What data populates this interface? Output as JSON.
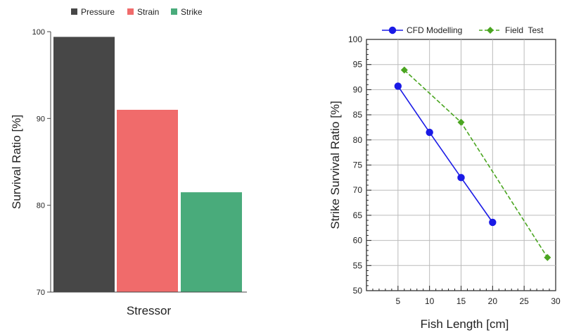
{
  "chart_data": [
    {
      "type": "bar",
      "title": "",
      "xlabel": "Stressor",
      "ylabel": "Survival Ratio [%]",
      "ylim": [
        70,
        100
      ],
      "yticks": [
        70,
        80,
        90,
        100
      ],
      "grid": false,
      "legend_position": "top",
      "series": [
        {
          "name": "Pressure",
          "value": 99.4,
          "color": "#474747"
        },
        {
          "name": "Strain",
          "value": 91.0,
          "color": "#f06b6b"
        },
        {
          "name": "Strike",
          "value": 81.5,
          "color": "#49ab7b"
        }
      ]
    },
    {
      "type": "line",
      "title": "",
      "xlabel": "Fish Length [cm]",
      "ylabel": "Strike Survival Ratio [%]",
      "xlim": [
        0,
        30
      ],
      "ylim": [
        50,
        100
      ],
      "xticks": [
        5,
        10,
        15,
        20,
        25,
        30
      ],
      "yticks": [
        50,
        55,
        60,
        65,
        70,
        75,
        80,
        85,
        90,
        95,
        100
      ],
      "grid": true,
      "legend_position": "top",
      "series": [
        {
          "name": "CFD Modelling",
          "color": "#1a1ae6",
          "marker": "circle",
          "line": "solid",
          "x": [
            5,
            10,
            15,
            20
          ],
          "y": [
            90.7,
            81.5,
            72.5,
            63.6
          ]
        },
        {
          "name": "Field  Test",
          "color": "#4aa520",
          "marker": "diamond",
          "line": "dashed",
          "x": [
            6,
            15,
            28.7
          ],
          "y": [
            93.9,
            83.5,
            56.6
          ]
        }
      ]
    }
  ]
}
